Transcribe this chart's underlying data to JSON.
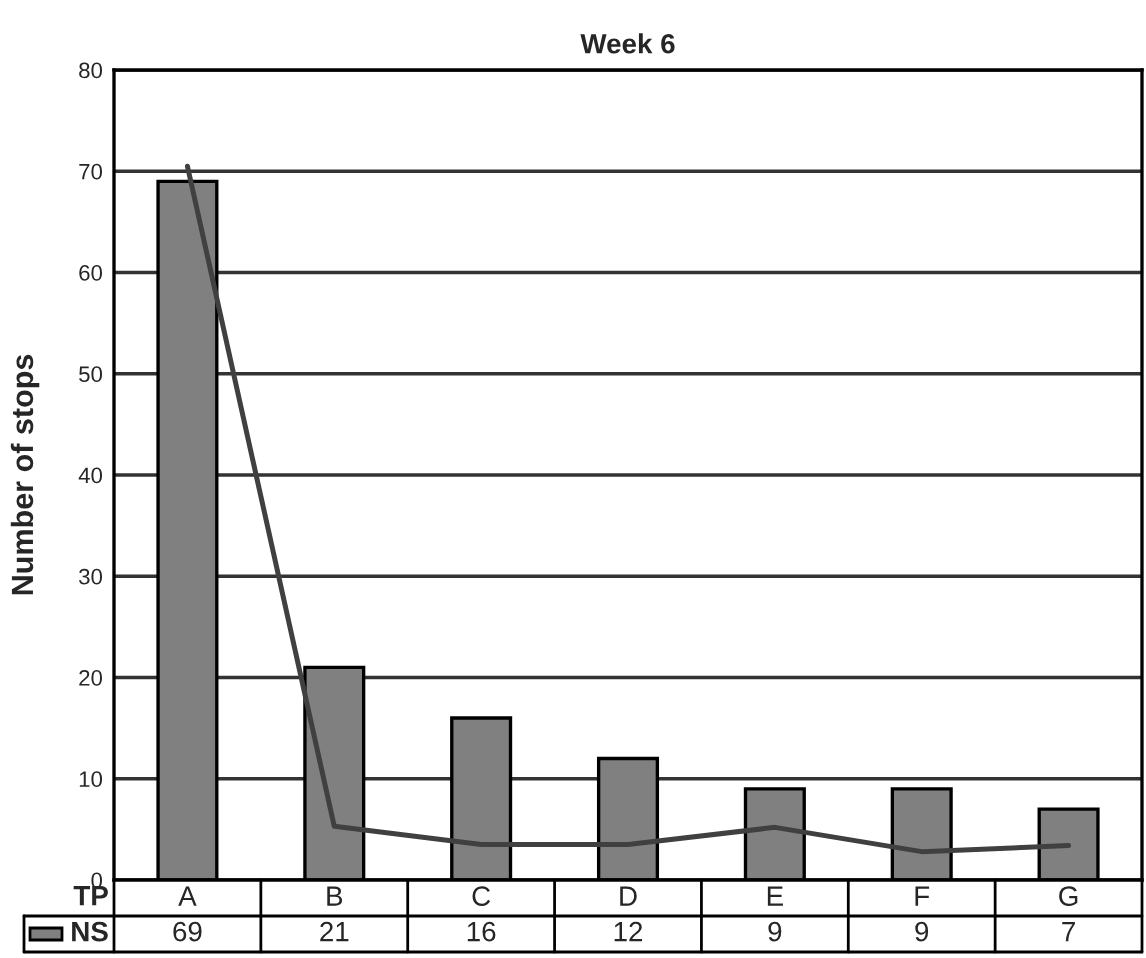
{
  "chart_data": {
    "type": "bar",
    "title": "Week 6",
    "ylabel": "Number of stops",
    "xlabel": "TP",
    "categories": [
      "A",
      "B",
      "C",
      "D",
      "E",
      "F",
      "G"
    ],
    "series": [
      {
        "name": "NS",
        "color": "#808080",
        "values": [
          69,
          21,
          16,
          12,
          9,
          9,
          7
        ],
        "value_labels": [
          "69",
          "21",
          "16",
          "12",
          "9",
          "9",
          "7"
        ]
      },
      {
        "type": "line",
        "color": "#404040",
        "values": [
          70.5,
          5.3,
          3.5,
          3.5,
          5.2,
          2.8,
          3.4
        ]
      }
    ],
    "ylim": [
      0,
      80
    ],
    "yticks": [
      0,
      10,
      20,
      30,
      40,
      50,
      60,
      70,
      80
    ],
    "grid": "y",
    "legend": "bottom left",
    "marker": "none",
    "line_style": "solid"
  }
}
